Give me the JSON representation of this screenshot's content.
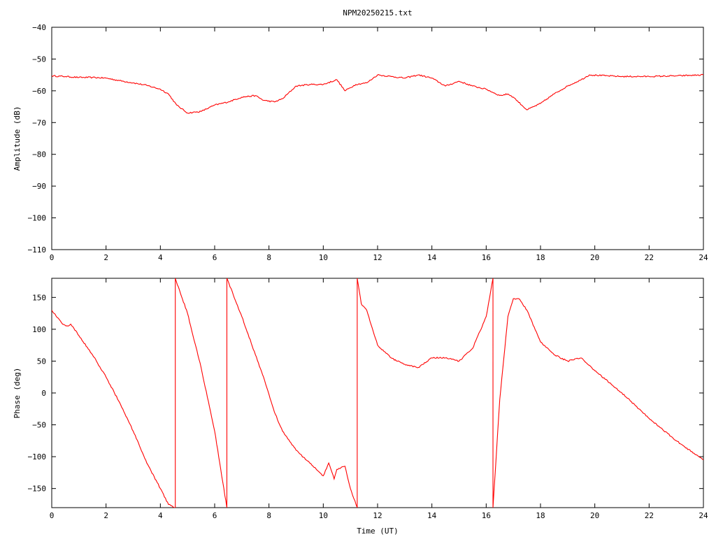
{
  "colors": {
    "series": "#ff0000",
    "axis": "#000000",
    "background": "#ffffff"
  },
  "chart_data": [
    {
      "type": "line",
      "title": "NPM20250215.txt",
      "xlabel": "",
      "ylabel": "Amplitude (dB)",
      "xlim": [
        0,
        24
      ],
      "ylim": [
        -110,
        -40
      ],
      "xticks": [
        0,
        2,
        4,
        6,
        8,
        10,
        12,
        14,
        16,
        18,
        20,
        22,
        24
      ],
      "yticks": [
        -110,
        -100,
        -90,
        -80,
        -70,
        -60,
        -50,
        -40
      ],
      "grid": false,
      "legend": "none",
      "series": [
        {
          "x": [
            0,
            0.5,
            1,
            1.5,
            2,
            2.5,
            3,
            3.5,
            4,
            4.3,
            4.6,
            5.0,
            5.5,
            6.0,
            6.5,
            7.0,
            7.5,
            7.8,
            8.2,
            8.5,
            9.0,
            9.5,
            10.0,
            10.5,
            10.8,
            11.2,
            11.6,
            12.0,
            12.5,
            13.0,
            13.5,
            14.0,
            14.5,
            15.0,
            15.5,
            16.0,
            16.5,
            16.8,
            17.0,
            17.5,
            18.0,
            18.5,
            19.0,
            19.5,
            19.8,
            20.5,
            21.0,
            22.0,
            23.0,
            24.0
          ],
          "values": [
            -55.3,
            -55.5,
            -55.8,
            -55.8,
            -56.0,
            -56.8,
            -57.5,
            -58.3,
            -59.5,
            -61.0,
            -64.5,
            -67.0,
            -66.5,
            -64.5,
            -63.5,
            -62.0,
            -61.5,
            -63.0,
            -63.5,
            -62.5,
            -58.5,
            -58.0,
            -58.0,
            -56.5,
            -60.0,
            -58.0,
            -57.5,
            -55.0,
            -55.5,
            -56.0,
            -55.0,
            -56.0,
            -58.5,
            -57.0,
            -58.5,
            -59.5,
            -61.5,
            -61.0,
            -62.0,
            -66.0,
            -64.0,
            -61.0,
            -58.5,
            -56.5,
            -55.0,
            -55.3,
            -55.5,
            -55.5,
            -55.3,
            -55.0
          ]
        }
      ]
    },
    {
      "type": "line",
      "title": "",
      "xlabel": "Time (UT)",
      "ylabel": "Phase (deg)",
      "xlim": [
        0,
        24
      ],
      "ylim": [
        -180,
        180
      ],
      "xticks": [
        0,
        2,
        4,
        6,
        8,
        10,
        12,
        14,
        16,
        18,
        20,
        22,
        24
      ],
      "yticks": [
        -150,
        -100,
        -50,
        0,
        50,
        100,
        150
      ],
      "grid": false,
      "legend": "none",
      "series": [
        {
          "x": [
            0,
            0.4,
            0.6,
            0.7,
            1.0,
            1.5,
            2.0,
            2.5,
            3.0,
            3.5,
            4.0,
            4.3,
            4.55,
            4.55,
            5.0,
            5.5,
            6.0,
            6.45,
            6.45,
            7.0,
            7.5,
            7.8,
            8.2,
            8.5,
            9.0,
            9.5,
            10.0,
            10.2,
            10.4,
            10.5,
            10.8,
            11.0,
            11.25,
            11.25,
            11.4,
            11.6,
            12.0,
            12.5,
            13.0,
            13.5,
            14.0,
            14.5,
            15.0,
            15.5,
            16.0,
            16.25,
            16.25,
            16.5,
            16.8,
            17.0,
            17.2,
            17.5,
            18.0,
            18.5,
            19.0,
            19.5,
            20.0,
            21.0,
            22.0,
            23.0,
            24.0
          ],
          "values": [
            130,
            108,
            105,
            108,
            90,
            60,
            25,
            -15,
            -60,
            -110,
            -150,
            -175,
            -180,
            180,
            125,
            40,
            -60,
            -180,
            180,
            120,
            60,
            25,
            -30,
            -60,
            -90,
            -110,
            -130,
            -110,
            -135,
            -120,
            -115,
            -150,
            -180,
            180,
            140,
            130,
            75,
            55,
            45,
            40,
            55,
            55,
            50,
            70,
            120,
            180,
            -180,
            -10,
            120,
            148,
            148,
            130,
            80,
            60,
            50,
            55,
            35,
            0,
            -40,
            -75,
            -105
          ]
        }
      ]
    }
  ]
}
